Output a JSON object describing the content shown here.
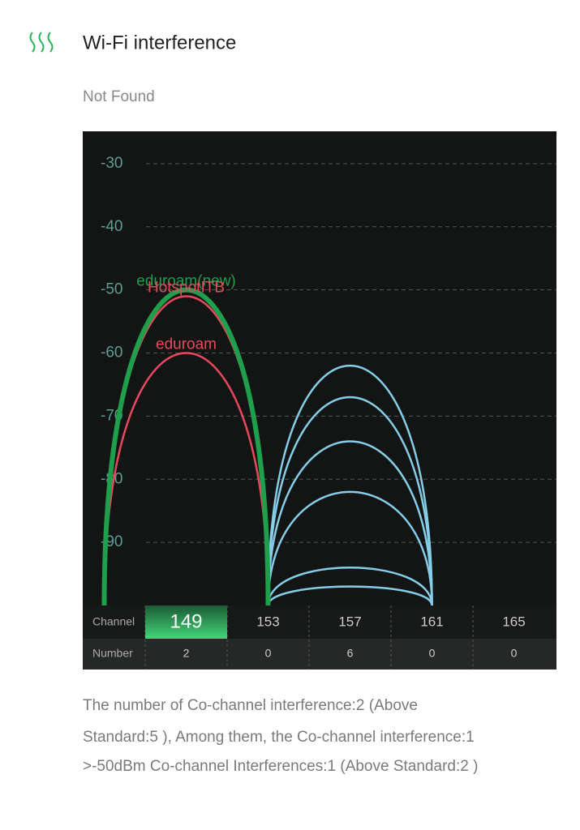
{
  "header": {
    "title": "Wi-Fi interference",
    "status": "Not Found"
  },
  "chart_data": {
    "type": "arc",
    "ylim": [
      -100,
      -25
    ],
    "yticks": [
      -30,
      -40,
      -50,
      -60,
      -70,
      -80,
      -90
    ],
    "grid": true,
    "categories": [
      149,
      153,
      157,
      161,
      165
    ],
    "highlight": 149,
    "series": [
      {
        "name": "eduroam(new)",
        "color": "#1f9e4b",
        "channel": 149,
        "value": -50
      },
      {
        "name": "HotspotITB",
        "color": "#e8485e",
        "channel": 149,
        "value": -51
      },
      {
        "name": "eduroam",
        "color": "#e8485e",
        "channel": 149,
        "value": -60
      },
      {
        "color": "#86cde8",
        "channel": 157,
        "value": -62
      },
      {
        "color": "#86cde8",
        "channel": 157,
        "value": -67
      },
      {
        "color": "#86cde8",
        "channel": 157,
        "value": -74
      },
      {
        "color": "#86cde8",
        "channel": 157,
        "value": -82
      },
      {
        "color": "#86cde8",
        "channel": 157,
        "value": -94
      },
      {
        "color": "#86cde8",
        "channel": 157,
        "value": -97
      }
    ]
  },
  "table": {
    "row_labels": [
      "Channel",
      "Number"
    ],
    "numbers": [
      2,
      0,
      6,
      0,
      0
    ]
  },
  "footer": {
    "lines": [
      "The number of Co-channel interference:2 (Above",
      "Standard:5 ), Among them, the Co-channel interference:1",
      ">-50dBm Co-channel Interferences:1 (Above Standard:2 )"
    ]
  }
}
